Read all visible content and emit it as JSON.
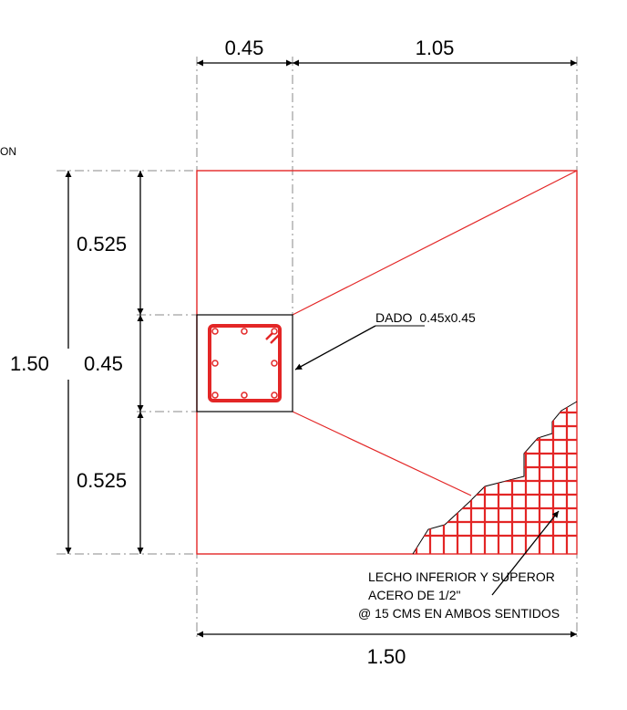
{
  "drawing": {
    "top_dims": {
      "left": "0.45",
      "right": "1.05"
    },
    "bottom_dim": "1.50",
    "left_dims": {
      "overall": "1.50",
      "top": "0.525",
      "middle": "0.45",
      "bottom": "0.525"
    },
    "dado_label": {
      "main": "DADO",
      "size": "0.45x0.45"
    },
    "steel_note": {
      "line1": "LECHO INFERIOR Y SUPEROR",
      "line2": "ACERO DE 1/2\"",
      "line3": "@ 15 CMS EN AMBOS SENTIDOS"
    },
    "edge_fragment": "ON",
    "colors": {
      "footing": "#e32626",
      "dimensions": "#000000",
      "extension": "#8a8a8a"
    }
  }
}
